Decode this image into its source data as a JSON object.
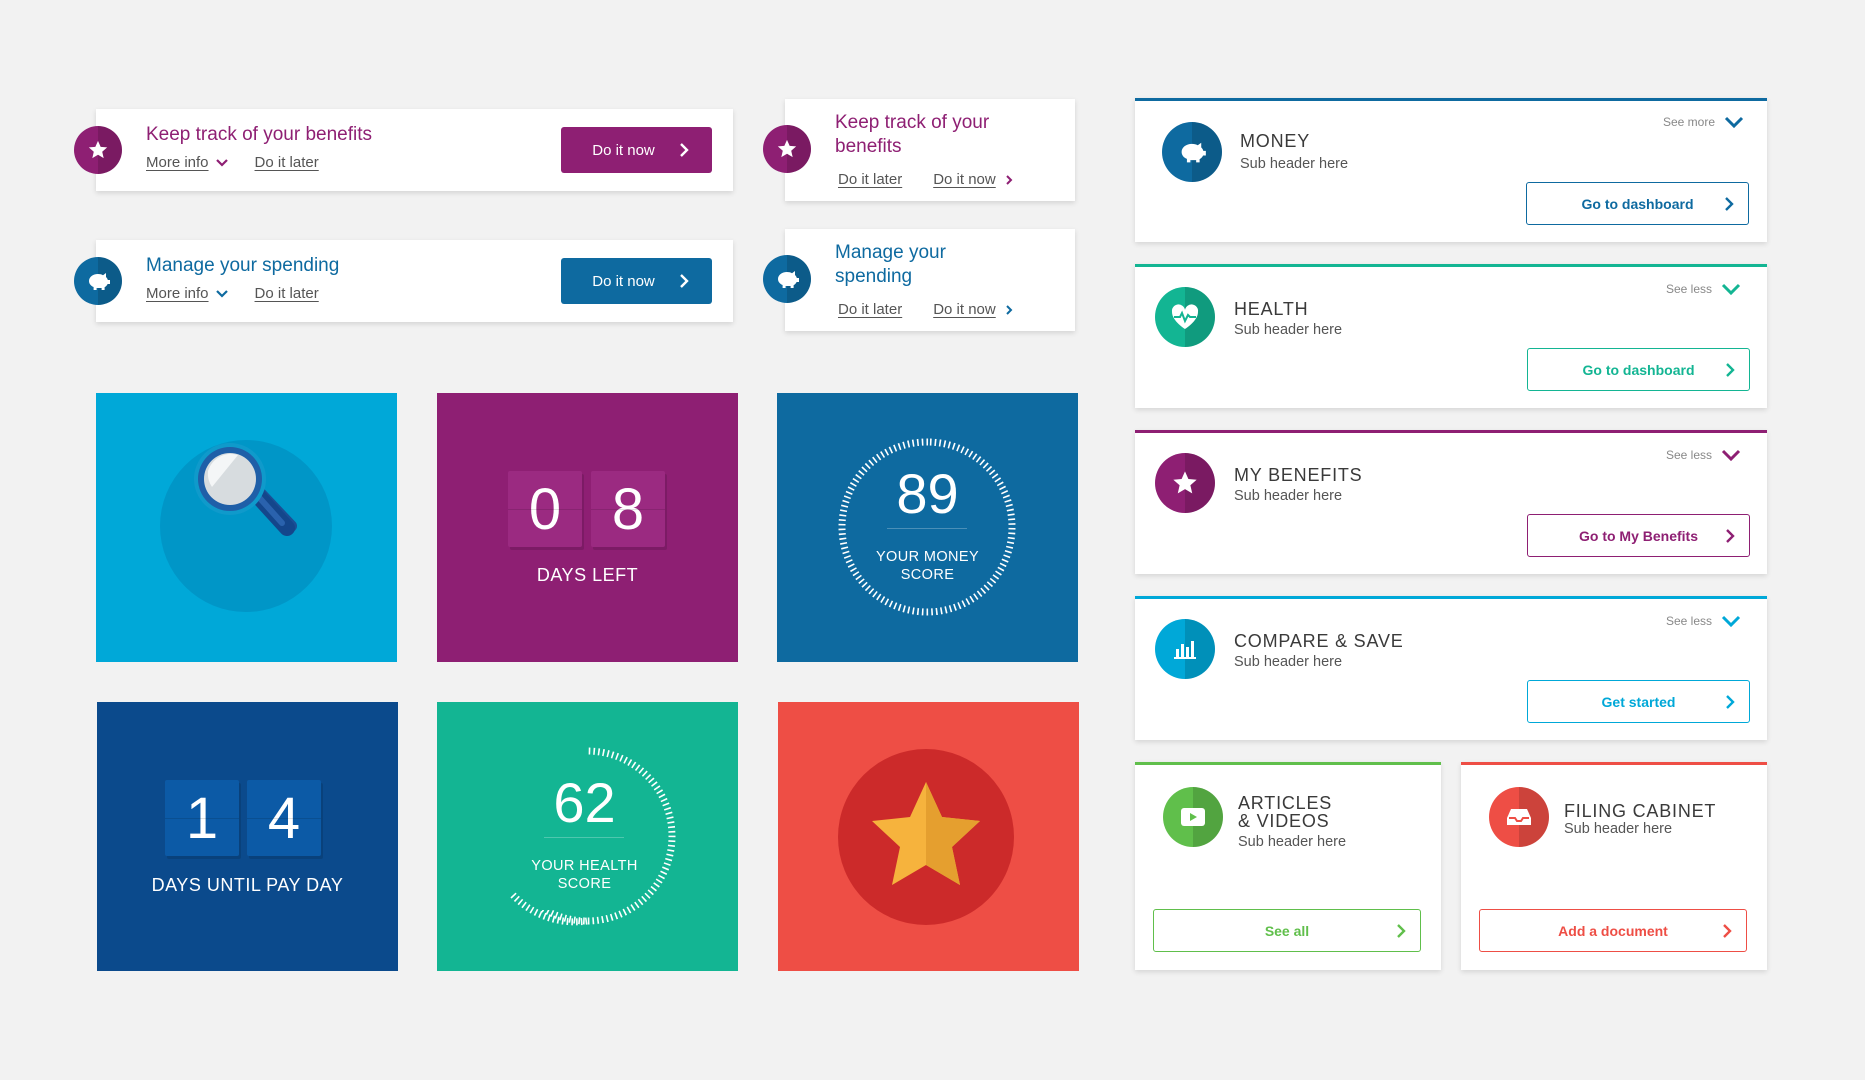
{
  "colors": {
    "purple": "#8e1f73",
    "blue": "#0e6aa0",
    "cyan": "#00a8d8",
    "navy": "#0b4a8c",
    "green": "#13b593",
    "coral": "#ee4e45",
    "lime": "#60bf4b"
  },
  "wide_cards": [
    {
      "title": "Keep track of your benefits",
      "more_info": "More info",
      "do_later": "Do it later",
      "cta": "Do it now",
      "icon": "star-icon"
    },
    {
      "title": "Manage your spending",
      "more_info": "More info",
      "do_later": "Do it later",
      "cta": "Do it now",
      "icon": "piggy-bank-icon"
    }
  ],
  "narrow_cards": [
    {
      "title_line1": "Keep track of your",
      "title_line2": "benefits",
      "do_later": "Do it later",
      "do_now": "Do it now",
      "icon": "star-icon"
    },
    {
      "title_line1": "Manage your",
      "title_line2": "spending",
      "do_later": "Do it later",
      "do_now": "Do it now",
      "icon": "piggy-bank-icon"
    }
  ],
  "tiles": {
    "days_left": {
      "digits": [
        "0",
        "8"
      ],
      "label": "DAYS LEFT"
    },
    "money_score": {
      "value": "89",
      "label_line1": "YOUR MONEY",
      "label_line2": "SCORE"
    },
    "pay_day": {
      "digits": [
        "1",
        "4"
      ],
      "label": "DAYS UNTIL PAY DAY"
    },
    "health_score": {
      "value": "62",
      "label_line1": "YOUR HEALTH",
      "label_line2": "SCORE"
    }
  },
  "panels": {
    "money": {
      "title": "MONEY",
      "sub": "Sub header here",
      "see": "See more",
      "button": "Go to dashboard"
    },
    "health": {
      "title": "HEALTH",
      "sub": "Sub header here",
      "see": "See less",
      "button": "Go to dashboard"
    },
    "benefits": {
      "title": "MY BENEFITS",
      "sub": "Sub header here",
      "see": "See less",
      "button": "Go to My Benefits"
    },
    "compare": {
      "title": "COMPARE & SAVE",
      "sub": "Sub header here",
      "see": "See less",
      "button": "Get started"
    },
    "articles": {
      "title_line1": "ARTICLES",
      "title_line2": "& VIDEOS",
      "sub": "Sub header here",
      "button": "See all"
    },
    "filing": {
      "title": "FILING CABINET",
      "sub": "Sub header here",
      "button": "Add a document"
    }
  }
}
